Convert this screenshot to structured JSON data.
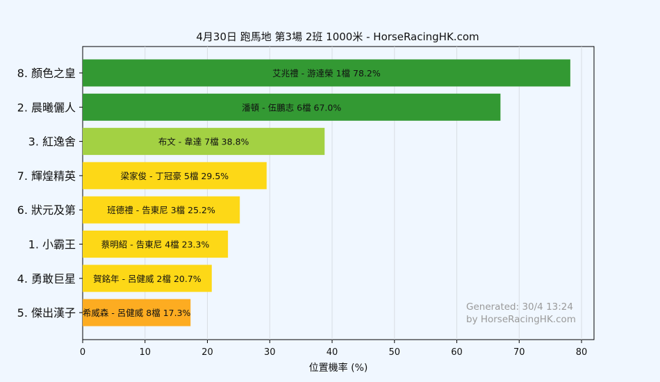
{
  "chart_data": {
    "type": "bar",
    "orientation": "horizontal",
    "title": "4月30日  跑馬地  第3場  2班  1000米 - HorseRacingHK.com",
    "xlabel": "位置機率 (%)",
    "xlim": [
      0,
      82
    ],
    "xticks": [
      0,
      10,
      20,
      30,
      40,
      50,
      60,
      70,
      80
    ],
    "grid": true,
    "categories": [
      "8. 顏色之皇",
      "2. 晨曦儷人",
      "3. 紅逸舍",
      "7. 輝煌精英",
      "6. 狀元及第",
      "1. 小霸王",
      "4. 勇敢巨星",
      "5. 傑出漢子"
    ],
    "values": [
      78.2,
      67.0,
      38.8,
      29.5,
      25.2,
      23.3,
      20.7,
      17.3
    ],
    "bar_labels": [
      "艾兆禮 - 游達榮 1檔  78.2%",
      "潘頓 - 伍鵬志 6檔  67.0%",
      "布文 - 韋達 7檔  38.8%",
      "梁家俊 - 丁冠豪 5檔  29.5%",
      "班德禮 - 告東尼 3檔  25.2%",
      "蔡明紹 - 告東尼 4檔  23.3%",
      "賀銘年 - 呂健威 2檔  20.7%",
      "希威森 - 呂健威 8檔  17.3%"
    ],
    "colors": [
      "#339933",
      "#339933",
      "#a3d143",
      "#fdd817",
      "#fdd817",
      "#fdd817",
      "#fdd817",
      "#fdac21"
    ]
  },
  "watermark": {
    "line1": "Generated: 30/4 13:24",
    "line2": "by HorseRacingHK.com"
  },
  "background": "#f0f7ff"
}
